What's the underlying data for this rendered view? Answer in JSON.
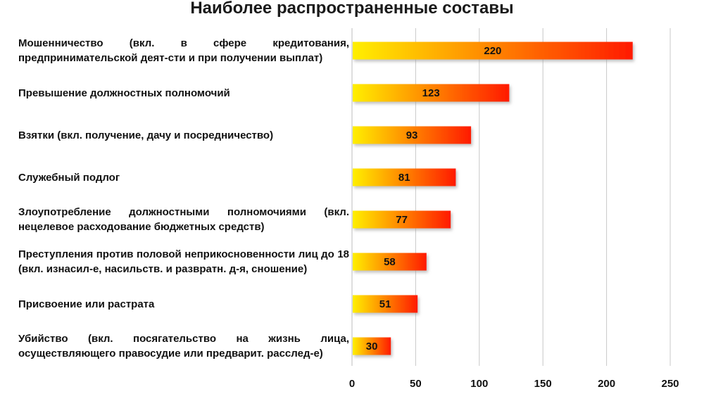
{
  "chart_data": {
    "type": "bar",
    "orientation": "horizontal",
    "title": "Наиболее распространенные составы",
    "categories": [
      "Мошенничество (вкл. в сфере кредитования, предпринимательской деят-сти и при получении выплат)",
      "Превышение должностных полномочий",
      "Взятки (вкл. получение, дачу и посредничество)",
      "Служебный подлог",
      "Злоупотребление должностными полномочиями (вкл. нецелевое расходование бюджетных средств)",
      "Преступления против половой неприкосновенности лиц до 18 (вкл. изнасил-е, насильств. и развратн. д-я, сношение)",
      "Присвоение или растрата",
      "Убийство (вкл. посягательство на жизнь лица, осуществляющего правосудие или предварит. расслед-е)"
    ],
    "values": [
      220,
      123,
      93,
      81,
      77,
      58,
      51,
      30
    ],
    "value_labels": [
      "220",
      "123",
      "93",
      "81",
      "77",
      "58",
      "51",
      "30"
    ],
    "xlim": [
      0,
      250
    ],
    "xticks": [
      "0",
      "50",
      "100",
      "150",
      "200",
      "250"
    ],
    "grid": true,
    "legend": "none",
    "colors": {
      "bar_start": "#ffef00",
      "bar_end": "#ff1a00",
      "grid": "#c8c8c8",
      "bar_shadow": "#b0b0b0"
    }
  }
}
